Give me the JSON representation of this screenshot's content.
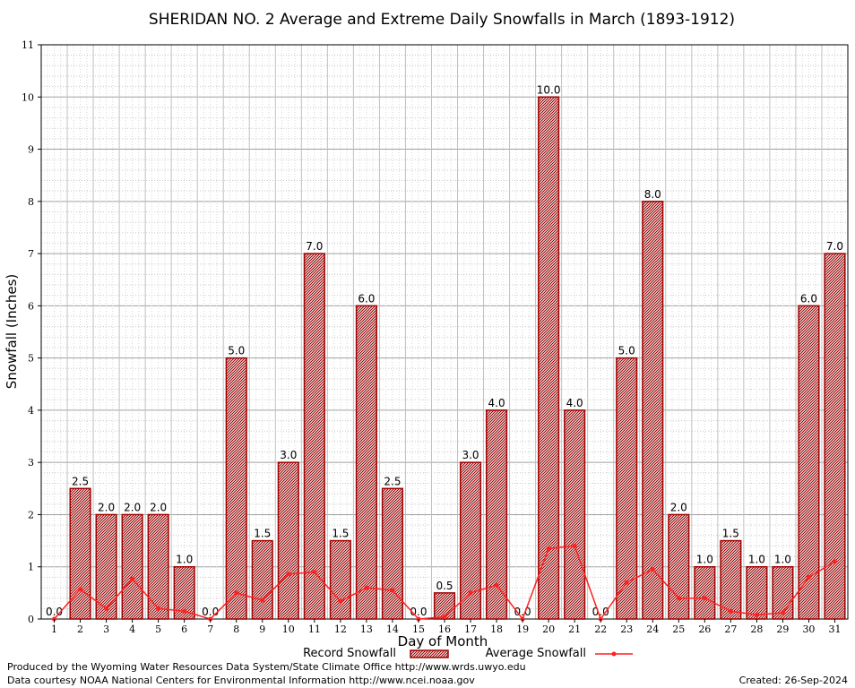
{
  "chart_data": {
    "type": "bar",
    "title": "SHERIDAN NO. 2 Average and Extreme Daily Snowfalls in March (1893-1912)",
    "xlabel": "Day of Month",
    "ylabel": "Snowfall (Inches)",
    "ylim": [
      0,
      11
    ],
    "yticks": [
      "0",
      "1",
      "2",
      "3",
      "4",
      "5",
      "6",
      "7",
      "8",
      "9",
      "10",
      "11"
    ],
    "grid": true,
    "legend_position": "bottom-center",
    "categories": [
      "1",
      "2",
      "3",
      "4",
      "5",
      "6",
      "7",
      "8",
      "9",
      "10",
      "11",
      "12",
      "13",
      "14",
      "15",
      "16",
      "17",
      "18",
      "19",
      "20",
      "21",
      "22",
      "23",
      "24",
      "25",
      "26",
      "27",
      "28",
      "29",
      "30",
      "31"
    ],
    "series": [
      {
        "name": "Record Snowfall",
        "kind": "bar",
        "color": "#a00000",
        "values": [
          0.0,
          2.5,
          2.0,
          2.0,
          2.0,
          1.0,
          0.0,
          5.0,
          1.5,
          3.0,
          7.0,
          1.5,
          6.0,
          2.5,
          0.0,
          0.5,
          3.0,
          4.0,
          0.0,
          10.0,
          4.0,
          0.0,
          5.0,
          8.0,
          2.0,
          1.0,
          1.5,
          1.0,
          1.0,
          6.0,
          7.0
        ],
        "labels": [
          "0.0",
          "2.5",
          "2.0",
          "2.0",
          "2.0",
          "1.0",
          "0.0",
          "5.0",
          "1.5",
          "3.0",
          "7.0",
          "1.5",
          "6.0",
          "2.5",
          "0.0",
          "0.5",
          "3.0",
          "4.0",
          "0.0",
          "10.0",
          "4.0",
          "0.0",
          "5.0",
          "8.0",
          "2.0",
          "1.0",
          "1.5",
          "1.0",
          "1.0",
          "6.0",
          "7.0"
        ]
      },
      {
        "name": "Average Snowfall",
        "kind": "line",
        "color": "#ff2020",
        "values": [
          0.0,
          0.57,
          0.2,
          0.77,
          0.2,
          0.15,
          0.0,
          0.5,
          0.36,
          0.86,
          0.9,
          0.34,
          0.6,
          0.55,
          0.0,
          0.04,
          0.5,
          0.65,
          0.0,
          1.35,
          1.4,
          0.0,
          0.7,
          0.95,
          0.4,
          0.4,
          0.15,
          0.08,
          0.12,
          0.8,
          1.1
        ]
      }
    ]
  },
  "footer": {
    "line1": "Produced by the Wyoming Water Resources Data System/State Climate Office http://www.wrds.uwyo.edu",
    "line2": "Data courtesy NOAA National Centers for Environmental Information http://www.ncei.noaa.gov",
    "created": "Created: 26-Sep-2024"
  }
}
